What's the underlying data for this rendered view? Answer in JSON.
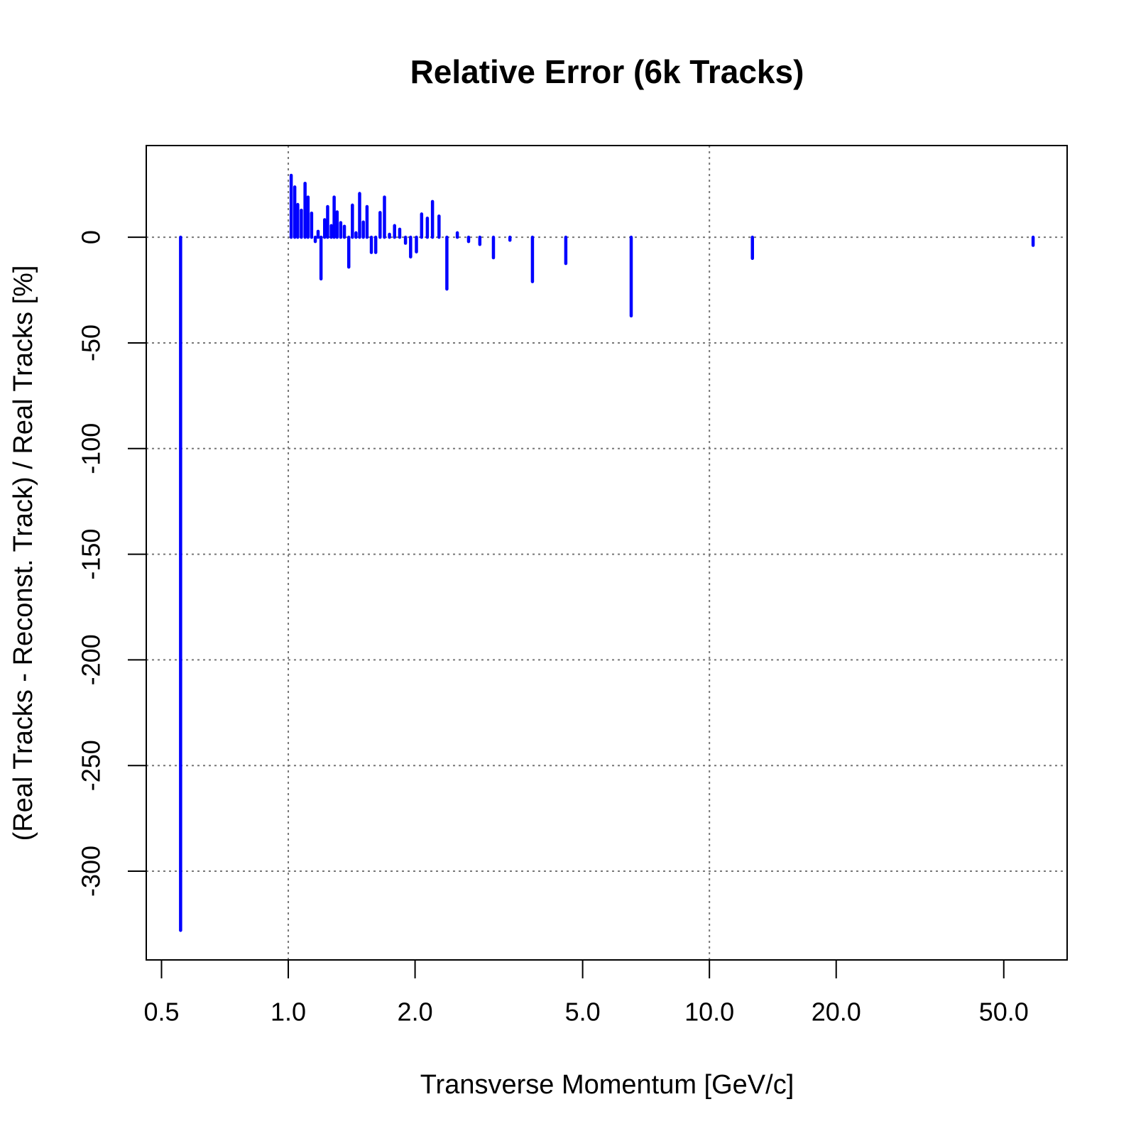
{
  "chart_data": {
    "type": "stem",
    "title": "Relative Error (6k Tracks)",
    "x_label": "Transverse Momentum [GeV/c]",
    "y_label": "(Real Tracks - Reconst. Track) / Real Tracks [%]",
    "x_log": true,
    "color": "#0000ff",
    "x": [
      0.555,
      1.016,
      1.036,
      1.053,
      1.074,
      1.096,
      1.114,
      1.136,
      1.159,
      1.177,
      1.196,
      1.22,
      1.24,
      1.265,
      1.285,
      1.306,
      1.332,
      1.359,
      1.392,
      1.42,
      1.448,
      1.477,
      1.507,
      1.538,
      1.575,
      1.613,
      1.652,
      1.692,
      1.739,
      1.788,
      1.839,
      1.898,
      1.952,
      2.015,
      2.073,
      2.139,
      2.2,
      2.28,
      2.38,
      2.52,
      2.68,
      2.85,
      3.07,
      3.36,
      3.8,
      4.56,
      6.52,
      12.65,
      58.7
    ],
    "values": [
      -328,
      29.3,
      23.8,
      15.5,
      12.8,
      25.5,
      19,
      11.4,
      -2,
      2.8,
      -19.7,
      8.3,
      14.5,
      5.5,
      19,
      12,
      6.9,
      5.2,
      -14.1,
      15.2,
      2.1,
      20.7,
      7.2,
      14.5,
      -7.2,
      -7.2,
      11.7,
      19,
      1.4,
      5.5,
      3.8,
      -2.8,
      -9.3,
      -6.9,
      11,
      9,
      16.9,
      10,
      -24.5,
      2.1,
      -2,
      -3.4,
      -9.7,
      -1.4,
      -21,
      -12.4,
      -37.2,
      -10,
      -3.8
    ],
    "xlim": [
      0.46,
      70.7
    ],
    "ylim": [
      -342,
      43.4
    ],
    "xticks": [
      0.5,
      {
        "value": 1,
        "label": "1.0"
      },
      {
        "value": 2,
        "label": "2.0"
      },
      {
        "value": 5,
        "label": "5.0"
      },
      {
        "value": 10,
        "label": "10.0"
      },
      {
        "value": 20,
        "label": "20.0"
      },
      {
        "value": 50,
        "label": "50.0"
      }
    ],
    "yticks": [
      0,
      -50,
      -100,
      -150,
      -200,
      -250,
      -300
    ],
    "xgrid": [
      1,
      10
    ],
    "grid": true
  }
}
